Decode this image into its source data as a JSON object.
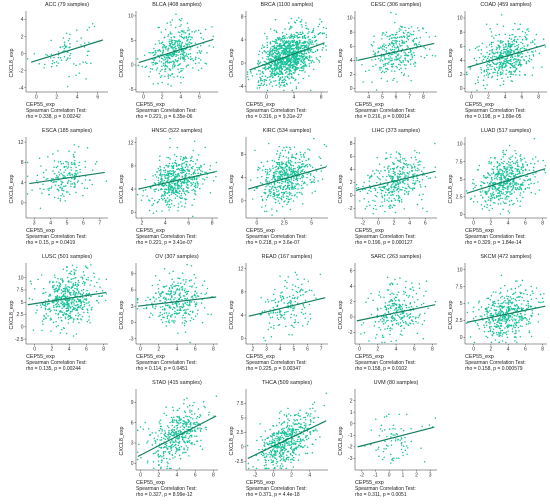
{
  "x_label": "CEP55_exp",
  "y_label": "CXCL8_exp",
  "test_label": "Spearman Correlation Test:",
  "colors": {
    "point": "#17c29a",
    "line": "#14805e",
    "axis": "#333333"
  },
  "chart_data": [
    {
      "type": "scatter",
      "title": "ACC (79 samples)",
      "n": 79,
      "rho": "0.338",
      "p": "0.00242",
      "xlim": [
        -1,
        7
      ],
      "ylim": [
        -4.5,
        5
      ],
      "xticks": [
        0,
        2,
        4,
        6
      ],
      "yticks": [
        -4,
        -2,
        0,
        2,
        4
      ],
      "fit": [
        [
          -0.5,
          -1.0
        ],
        [
          6.5,
          1.6
        ]
      ]
    },
    {
      "type": "scatter",
      "title": "BLCA (408 samples)",
      "n": 408,
      "rho": "0.221",
      "p": "6.35e-06",
      "xlim": [
        -0.8,
        8
      ],
      "ylim": [
        -5.5,
        11
      ],
      "xticks": [
        0,
        2,
        4,
        6
      ],
      "yticks": [
        -5,
        0,
        5,
        10
      ],
      "fit": [
        [
          -0.5,
          0.5
        ],
        [
          7.5,
          5.2
        ]
      ]
    },
    {
      "type": "scatter",
      "title": "BRCA (1100 samples)",
      "n": 1100,
      "rho": "0.316",
      "p": "9.31e-27",
      "xlim": [
        -3,
        9
      ],
      "ylim": [
        -5,
        9
      ],
      "xticks": [
        0,
        4,
        8
      ],
      "yticks": [
        -4,
        0,
        4,
        8
      ],
      "fit": [
        [
          -2.5,
          -1.2
        ],
        [
          8.5,
          3.5
        ]
      ]
    },
    {
      "type": "scatter",
      "title": "CESC (306 samples)",
      "n": 306,
      "rho": "0.216",
      "p": "0.00014",
      "xlim": [
        3,
        9
      ],
      "ylim": [
        -0.5,
        11
      ],
      "xticks": [
        4,
        5,
        6,
        7,
        8
      ],
      "yticks": [
        0,
        2,
        4,
        6,
        8,
        10
      ],
      "fit": [
        [
          3.2,
          4.0
        ],
        [
          8.8,
          6.4
        ]
      ]
    },
    {
      "type": "scatter",
      "title": "COAD (459 samples)",
      "n": 459,
      "rho": "0.198",
      "p": "1.89e-05",
      "xlim": [
        -0.8,
        9
      ],
      "ylim": [
        -0.5,
        11
      ],
      "xticks": [
        0,
        2,
        4,
        6,
        8
      ],
      "yticks": [
        0,
        2,
        4,
        6,
        8,
        10
      ],
      "fit": [
        [
          -0.5,
          3.0
        ],
        [
          8.8,
          6.2
        ]
      ]
    },
    {
      "type": "scatter",
      "title": "ESCA (185 samples)",
      "n": 185,
      "rho": "0.15",
      "p": "0.0419",
      "xlim": [
        2.5,
        7.5
      ],
      "ylim": [
        -3,
        13
      ],
      "xticks": [
        3,
        4,
        5,
        6,
        7
      ],
      "yticks": [
        0,
        4,
        8,
        12
      ],
      "fit": [
        [
          2.7,
          3.8
        ],
        [
          7.3,
          6.0
        ]
      ]
    },
    {
      "type": "scatter",
      "title": "HNSC (522 samples)",
      "n": 522,
      "rho": "0.221",
      "p": "3.41e-07",
      "xlim": [
        1.5,
        8.5
      ],
      "ylim": [
        -1,
        13
      ],
      "xticks": [
        2,
        4,
        6,
        8
      ],
      "yticks": [
        0,
        4,
        8,
        12
      ],
      "fit": [
        [
          1.7,
          4.0
        ],
        [
          8.3,
          7.0
        ]
      ]
    },
    {
      "type": "scatter",
      "title": "KIRC (534 samples)",
      "n": 534,
      "rho": "0.218",
      "p": "3.6e-07",
      "xlim": [
        -1,
        6.5
      ],
      "ylim": [
        -3,
        11
      ],
      "xticks": [
        0,
        2.5,
        5
      ],
      "yticks": [
        0,
        4,
        8
      ],
      "fit": [
        [
          -0.8,
          2.0
        ],
        [
          6.3,
          5.8
        ]
      ]
    },
    {
      "type": "scatter",
      "title": "LIHC (373 samples)",
      "n": 373,
      "rho": "0.196",
      "p": "0.000127",
      "xlim": [
        -3,
        7.5
      ],
      "ylim": [
        -3.5,
        9
      ],
      "xticks": [
        -2,
        0,
        2,
        4,
        6
      ],
      "yticks": [
        -2,
        0,
        2,
        4,
        6,
        8
      ],
      "fit": [
        [
          -2.8,
          0.8
        ],
        [
          7.3,
          3.7
        ]
      ]
    },
    {
      "type": "scatter",
      "title": "LUAD (517 samples)",
      "n": 517,
      "rho": "0.329",
      "p": "1.84e-14",
      "xlim": [
        -1,
        8.5
      ],
      "ylim": [
        -0.5,
        11
      ],
      "xticks": [
        0,
        2,
        4,
        6,
        8
      ],
      "yticks": [
        0,
        2.5,
        5,
        7.5,
        10
      ],
      "fit": [
        [
          -0.8,
          3.0
        ],
        [
          8.3,
          6.5
        ]
      ]
    },
    {
      "type": "scatter",
      "title": "LUSC (501 samples)",
      "n": 501,
      "rho": "0.135",
      "p": "0.00244",
      "xlim": [
        -1,
        8.5
      ],
      "ylim": [
        -3.5,
        13
      ],
      "xticks": [
        0,
        2,
        4,
        6,
        8
      ],
      "yticks": [
        -2.5,
        0,
        2.5,
        5,
        7.5,
        10
      ],
      "fit": [
        [
          -0.8,
          4.5
        ],
        [
          8.3,
          7.0
        ]
      ]
    },
    {
      "type": "scatter",
      "title": "OV (307 samples)",
      "n": 307,
      "rho": "0.114",
      "p": "0.0451",
      "xlim": [
        -0.5,
        8.5
      ],
      "ylim": [
        -4,
        11
      ],
      "xticks": [
        0,
        2,
        4,
        6,
        8
      ],
      "yticks": [
        -3,
        0,
        3,
        6,
        9
      ],
      "fit": [
        [
          -0.3,
          3.0
        ],
        [
          8.3,
          4.7
        ]
      ]
    },
    {
      "type": "scatter",
      "title": "READ (167 samples)",
      "n": 167,
      "rho": "0.225",
      "p": "0.00347",
      "xlim": [
        1.5,
        7.5
      ],
      "ylim": [
        -1,
        13
      ],
      "xticks": [
        2,
        3,
        4,
        5,
        6,
        7
      ],
      "yticks": [
        0,
        4,
        8,
        12
      ],
      "fit": [
        [
          1.7,
          3.8
        ],
        [
          7.3,
          7.0
        ]
      ]
    },
    {
      "type": "scatter",
      "title": "SARC (263 samples)",
      "n": 263,
      "rho": "0.158",
      "p": "0.0102",
      "xlim": [
        -0.5,
        8.5
      ],
      "ylim": [
        -3.5,
        7
      ],
      "xticks": [
        0,
        2,
        4,
        6,
        8
      ],
      "yticks": [
        -2,
        0,
        2,
        4,
        6
      ],
      "fit": [
        [
          -0.3,
          -0.5
        ],
        [
          8.3,
          1.6
        ]
      ]
    },
    {
      "type": "scatter",
      "title": "SKCM (472 samples)",
      "n": 472,
      "rho": "0.158",
      "p": "0.000579",
      "xlim": [
        -1,
        8.5
      ],
      "ylim": [
        -1,
        11
      ],
      "xticks": [
        0,
        2,
        4,
        6,
        8
      ],
      "yticks": [
        0,
        2.5,
        5,
        7.5,
        10
      ],
      "fit": [
        [
          -0.8,
          2.2
        ],
        [
          8.3,
          4.6
        ]
      ]
    },
    {
      "type": "scatter",
      "title": "STAD (415 samples)",
      "n": 415,
      "rho": "0.327",
      "p": "8.99e-12",
      "xlim": [
        -0.5,
        8.5
      ],
      "ylim": [
        -1,
        11
      ],
      "xticks": [
        0,
        2,
        4,
        6,
        8
      ],
      "yticks": [
        0,
        3,
        6,
        9
      ],
      "fit": [
        [
          -0.3,
          1.0
        ],
        [
          8.3,
          7.0
        ]
      ]
    },
    {
      "type": "scatter",
      "title": "THCA (509 samples)",
      "n": 509,
      "rho": "0.371",
      "p": "4.4e-18",
      "xlim": [
        -3,
        6
      ],
      "ylim": [
        -4,
        10
      ],
      "xticks": [
        -2,
        0,
        2,
        4
      ],
      "yticks": [
        -2.5,
        0,
        2.5,
        5,
        7.5
      ],
      "fit": [
        [
          -2.8,
          -2.0
        ],
        [
          5.8,
          4.5
        ]
      ]
    },
    {
      "type": "scatter",
      "title": "UVM (80 samples)",
      "n": 80,
      "rho": "0.311",
      "p": "0.0051",
      "xlim": [
        -2.5,
        3.5
      ],
      "ylim": [
        -4,
        3
      ],
      "xticks": [
        -2,
        -1,
        0,
        1,
        2,
        3
      ],
      "yticks": [
        -3,
        -2,
        -1,
        0,
        1,
        2
      ],
      "fit": [
        [
          -2.3,
          -2.0
        ],
        [
          3.3,
          -0.3
        ]
      ]
    }
  ]
}
